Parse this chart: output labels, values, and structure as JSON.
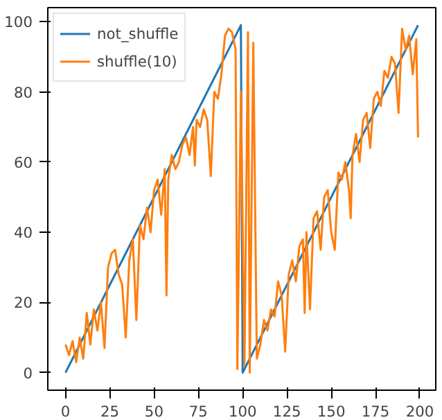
{
  "chart_data": {
    "type": "line",
    "xlim": [
      -10,
      209
    ],
    "ylim": [
      -5,
      104
    ],
    "xticks": [
      0,
      25,
      50,
      75,
      100,
      125,
      150,
      175,
      200
    ],
    "yticks": [
      0,
      20,
      40,
      60,
      80,
      100
    ],
    "grid": false,
    "legend": "top left",
    "line_style": "solid",
    "marker": "none",
    "series": [
      {
        "name": "not_shuffle",
        "color": "#1f77b4",
        "x": [
          0,
          99,
          100,
          199
        ],
        "values": [
          0,
          99,
          0,
          99
        ]
      },
      {
        "name": "shuffle(10)",
        "color": "#ff7f0e",
        "x": [
          0,
          2,
          4,
          6,
          8,
          10,
          12,
          14,
          16,
          18,
          20,
          22,
          24,
          26,
          28,
          30,
          32,
          34,
          36,
          38,
          40,
          42,
          44,
          46,
          48,
          50,
          52,
          54,
          56,
          57,
          58,
          60,
          62,
          64,
          66,
          68,
          70,
          72,
          73,
          74,
          76,
          78,
          80,
          82,
          84,
          86,
          88,
          90,
          92,
          94,
          96,
          97,
          99,
          101,
          103,
          104,
          106,
          108,
          110,
          112,
          114,
          116,
          118,
          120,
          122,
          124,
          126,
          128,
          130,
          132,
          134,
          135,
          136,
          138,
          140,
          142,
          144,
          146,
          148,
          150,
          152,
          154,
          156,
          158,
          160,
          161,
          162,
          164,
          166,
          168,
          170,
          172,
          174,
          176,
          178,
          180,
          182,
          184,
          186,
          188,
          190,
          192,
          194,
          196,
          198,
          199
        ],
        "values": [
          8,
          5,
          9,
          3,
          10,
          4,
          17,
          8,
          18,
          12,
          20,
          7,
          30,
          34,
          35,
          28,
          25,
          10,
          32,
          38,
          15,
          42,
          38,
          47,
          40,
          52,
          55,
          45,
          58,
          22,
          55,
          62,
          58,
          60,
          65,
          67,
          62,
          70,
          59,
          72,
          70,
          75,
          72,
          56,
          80,
          78,
          85,
          96,
          98,
          97,
          92,
          1,
          80,
          2,
          97,
          0,
          94,
          4,
          8,
          15,
          12,
          18,
          16,
          26,
          22,
          6,
          28,
          32,
          26,
          36,
          38,
          17,
          40,
          18,
          44,
          46,
          35,
          50,
          52,
          40,
          35,
          57,
          55,
          60,
          52,
          44,
          62,
          68,
          60,
          72,
          74,
          64,
          78,
          80,
          76,
          86,
          84,
          90,
          88,
          74,
          98,
          92,
          96,
          85,
          95,
          67
        ]
      }
    ]
  }
}
